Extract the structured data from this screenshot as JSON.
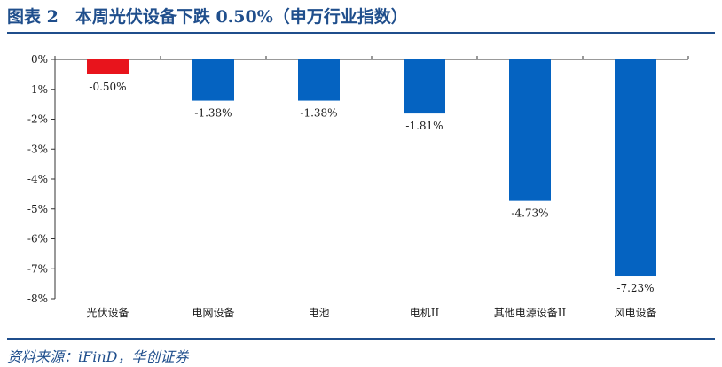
{
  "header": {
    "title": "图表 2　本周光伏设备下跌 0.50%（申万行业指数）"
  },
  "footer": {
    "source": "资料来源：iFinD，华创证券"
  },
  "colors": {
    "negative_small": "#e8141c",
    "negative": "#0563c1",
    "accent": "#1f4e8c"
  },
  "chart_data": {
    "type": "bar",
    "categories": [
      "光伏设备",
      "电网设备",
      "电池",
      "电机II",
      "其他电源设备II",
      "风电设备"
    ],
    "values": [
      -0.5,
      -1.38,
      -1.38,
      -1.81,
      -4.73,
      -7.23
    ],
    "data_labels": [
      "-0.50%",
      "-1.38%",
      "-1.38%",
      "-1.81%",
      "-4.73%",
      "-7.23%"
    ],
    "bar_colors": [
      "#e8141c",
      "#0563c1",
      "#0563c1",
      "#0563c1",
      "#0563c1",
      "#0563c1"
    ],
    "yticks": [
      0,
      -1,
      -2,
      -3,
      -4,
      -5,
      -6,
      -7,
      -8
    ],
    "ytick_labels": [
      "0%",
      "-1%",
      "-2%",
      "-3%",
      "-4%",
      "-5%",
      "-6%",
      "-7%",
      "-8%"
    ],
    "ylim": [
      -8,
      0
    ],
    "title": "本周光伏设备下跌 0.50%（申万行业指数）",
    "xlabel": "",
    "ylabel": "",
    "grid": false,
    "legend": "none"
  }
}
